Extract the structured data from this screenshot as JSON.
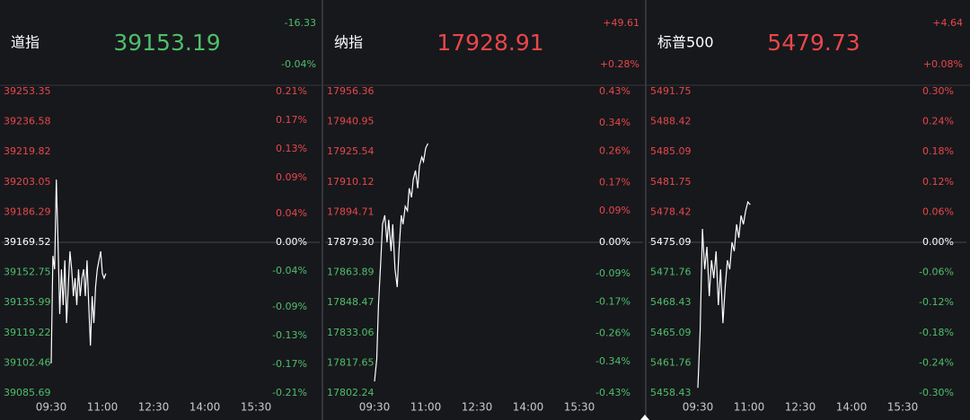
{
  "chart_data": [
    {
      "type": "line",
      "name": "道指",
      "price": "39153.19",
      "change": "-16.33",
      "change_pct": "-0.04%",
      "quote_color": "#4fbf6a",
      "x": [
        570,
        573,
        576,
        579,
        582,
        585,
        588,
        591,
        594,
        597,
        600,
        603,
        606,
        609,
        612,
        615,
        618,
        621,
        624,
        627,
        630,
        633,
        636,
        639,
        642,
        645,
        648,
        651,
        654,
        657,
        660,
        663,
        666
      ],
      "values": [
        39102.2,
        39162.0,
        39154.5,
        39204.4,
        39169.5,
        39129.6,
        39154.5,
        39134.6,
        39159.5,
        39124.6,
        39144.6,
        39164.5,
        39154.5,
        39139.6,
        39149.6,
        39134.6,
        39154.5,
        39139.6,
        39149.6,
        39154.5,
        39139.6,
        39159.5,
        39134.6,
        39112.1,
        39139.6,
        39124.6,
        39144.6,
        39154.5,
        39159.5,
        39164.5,
        39152.1,
        39149.6,
        39152.1
      ],
      "color": "#ffffff",
      "xlim": [
        570,
        960
      ],
      "xticks": [
        {
          "value": 570,
          "label": "09:30"
        },
        {
          "value": 660,
          "label": "11:00"
        },
        {
          "value": 750,
          "label": "12:30"
        },
        {
          "value": 840,
          "label": "14:00"
        },
        {
          "value": 930,
          "label": "15:30"
        }
      ],
      "ylim": [
        39085.69,
        39253.35
      ],
      "yticks": [
        39253.35,
        39236.58,
        39219.82,
        39203.05,
        39186.29,
        39169.52,
        39152.75,
        39135.99,
        39119.22,
        39102.46,
        39085.69
      ],
      "y2lim": [
        -0.21,
        0.21
      ],
      "y2ticks": [
        {
          "value": 0.21,
          "label": "0.21%"
        },
        {
          "value": 0.17,
          "label": "0.17%"
        },
        {
          "value": 0.13,
          "label": "0.13%"
        },
        {
          "value": 0.09,
          "label": "0.09%"
        },
        {
          "value": 0.04,
          "label": "0.04%"
        },
        {
          "value": 0,
          "label": "0.00%"
        },
        {
          "value": -0.04,
          "label": "-0.04%"
        },
        {
          "value": -0.09,
          "label": "-0.09%"
        },
        {
          "value": -0.13,
          "label": "-0.13%"
        },
        {
          "value": -0.17,
          "label": "-0.17%"
        },
        {
          "value": -0.21,
          "label": "-0.21%"
        }
      ],
      "up_color": "#e8474a",
      "down_color": "#4fbf6a",
      "flat_color": "#ffffff"
    },
    {
      "type": "line",
      "name": "纳指",
      "price": "17928.91",
      "change": "+49.61",
      "change_pct": "+0.28%",
      "quote_color": "#e8474a",
      "x": [
        570,
        574,
        577,
        581,
        584,
        588,
        592,
        595,
        599,
        602,
        606,
        610,
        613,
        617,
        620,
        624,
        628,
        631,
        635,
        638,
        642,
        646,
        649,
        653,
        656,
        660,
        664
      ],
      "values": [
        17808.2,
        17819.7,
        17847.2,
        17870.2,
        17888.5,
        17893.1,
        17879.3,
        17890.8,
        17874.8,
        17888.5,
        17865.6,
        17856.4,
        17874.8,
        17893.1,
        17888.5,
        17897.7,
        17895.4,
        17906.9,
        17902.3,
        17911.4,
        17916.0,
        17906.9,
        17918.3,
        17922.9,
        17920.6,
        17927.5,
        17929.8
      ],
      "color": "#ffffff",
      "xlim": [
        570,
        960
      ],
      "xticks": [
        {
          "value": 570,
          "label": "09:30"
        },
        {
          "value": 660,
          "label": "11:00"
        },
        {
          "value": 750,
          "label": "12:30"
        },
        {
          "value": 840,
          "label": "14:00"
        },
        {
          "value": 930,
          "label": "15:30"
        }
      ],
      "ylim": [
        17802.24,
        17956.36
      ],
      "yticks": [
        17956.36,
        17940.95,
        17925.54,
        17910.12,
        17894.71,
        {
          "value": 17879.3,
          "label": "17879.30"
        },
        17863.89,
        17848.47,
        17833.06,
        17817.65,
        17802.24
      ],
      "y2lim": [
        -0.43,
        0.43
      ],
      "y2ticks": [
        {
          "value": 0.43,
          "label": "0.43%"
        },
        {
          "value": 0.34,
          "label": "0.34%"
        },
        {
          "value": 0.26,
          "label": "0.26%"
        },
        {
          "value": 0.17,
          "label": "0.17%"
        },
        {
          "value": 0.09,
          "label": "0.09%"
        },
        {
          "value": 0,
          "label": "0.00%"
        },
        {
          "value": -0.09,
          "label": "-0.09%"
        },
        {
          "value": -0.17,
          "label": "-0.17%"
        },
        {
          "value": -0.26,
          "label": "-0.26%"
        },
        {
          "value": -0.34,
          "label": "-0.34%"
        },
        {
          "value": -0.43,
          "label": "-0.43%"
        }
      ],
      "up_color": "#e8474a",
      "down_color": "#4fbf6a",
      "flat_color": "#ffffff"
    },
    {
      "type": "line",
      "name": "标普500",
      "price": "5479.73",
      "change": "+4.64",
      "change_pct": "+0.08%",
      "quote_color": "#e8474a",
      "x": [
        570,
        574,
        578,
        582,
        586,
        590,
        594,
        598,
        602,
        606,
        610,
        614,
        618,
        622,
        626,
        630,
        634,
        638,
        642,
        646,
        650,
        654,
        658,
        662
      ],
      "values": [
        5459.02,
        5465.17,
        5476.58,
        5472.11,
        5474.59,
        5469.14,
        5473.11,
        5471.12,
        5474.1,
        5468.15,
        5472.11,
        5466.16,
        5470.13,
        5473.11,
        5472.11,
        5475.09,
        5474.1,
        5477.07,
        5475.59,
        5478.06,
        5477.07,
        5478.56,
        5479.55,
        5479.25
      ],
      "color": "#ffffff",
      "xlim": [
        570,
        960
      ],
      "xticks": [
        {
          "value": 570,
          "label": "09:30"
        },
        {
          "value": 660,
          "label": "11:00"
        },
        {
          "value": 750,
          "label": "12:30"
        },
        {
          "value": 840,
          "label": "14:00"
        },
        {
          "value": 930,
          "label": "15:30"
        }
      ],
      "ylim": [
        5458.43,
        5491.75
      ],
      "yticks": [
        5491.75,
        5488.42,
        5485.09,
        5481.75,
        5478.42,
        5475.09,
        5471.76,
        5468.43,
        5465.09,
        5461.76,
        5458.43
      ],
      "y2lim": [
        -0.3,
        0.3
      ],
      "y2ticks": [
        {
          "value": 0.3,
          "label": "0.30%"
        },
        {
          "value": 0.24,
          "label": "0.24%"
        },
        {
          "value": 0.18,
          "label": "0.18%"
        },
        {
          "value": 0.12,
          "label": "0.12%"
        },
        {
          "value": 0.06,
          "label": "0.06%"
        },
        {
          "value": 0,
          "label": "0.00%"
        },
        {
          "value": -0.06,
          "label": "-0.06%"
        },
        {
          "value": -0.12,
          "label": "-0.12%"
        },
        {
          "value": -0.18,
          "label": "-0.18%"
        },
        {
          "value": -0.24,
          "label": "-0.24%"
        },
        {
          "value": -0.3,
          "label": "-0.30%"
        }
      ],
      "up_color": "#e8474a",
      "down_color": "#4fbf6a",
      "flat_color": "#ffffff"
    }
  ]
}
